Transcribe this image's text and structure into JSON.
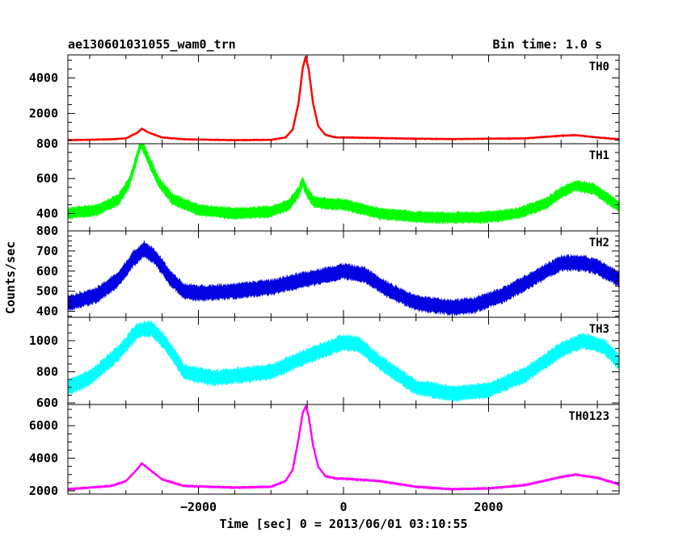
{
  "chart_data": {
    "type": "line",
    "header_left": "ae130601031055_wam0_trn",
    "header_right": "Bin time: 1.0 s",
    "xlabel": "Time [sec] 0 = 2013/06/01 03:10:55",
    "ylabel": "Counts/sec",
    "xlim": [
      -3800,
      3800
    ],
    "xticks": [
      -2000,
      0,
      2000
    ],
    "xtick_labels": [
      "−2000",
      "0",
      "2000"
    ],
    "grid": false,
    "panels": [
      {
        "label": "TH0",
        "color": "#ff0000",
        "ylim": [
          300,
          5300
        ],
        "yticks": [
          2000,
          4000
        ],
        "ytick_labels": [
          "2000",
          "4000"
        ],
        "noise": 40,
        "x": [
          -3800,
          -3200,
          -3000,
          -2850,
          -2780,
          -2700,
          -2500,
          -2200,
          -1500,
          -1000,
          -800,
          -700,
          -620,
          -560,
          -520,
          -480,
          -420,
          -350,
          -250,
          -100,
          0,
          500,
          1000,
          1500,
          2000,
          2500,
          3000,
          3200,
          3500,
          3800
        ],
        "values": [
          500,
          550,
          600,
          900,
          1150,
          950,
          650,
          550,
          500,
          520,
          650,
          1100,
          2600,
          4600,
          5200,
          4500,
          2600,
          1300,
          800,
          650,
          650,
          620,
          580,
          560,
          580,
          600,
          750,
          780,
          650,
          550
        ]
      },
      {
        "label": "TH1",
        "color": "#00ff00",
        "ylim": [
          300,
          800
        ],
        "yticks": [
          400,
          600,
          800
        ],
        "ytick_labels": [
          "400",
          "600",
          "800"
        ],
        "noise": 30,
        "x": [
          -3800,
          -3400,
          -3100,
          -2950,
          -2850,
          -2790,
          -2700,
          -2550,
          -2350,
          -2000,
          -1500,
          -1000,
          -750,
          -620,
          -560,
          -500,
          -420,
          -300,
          0,
          500,
          1000,
          1500,
          2000,
          2400,
          2800,
          3000,
          3200,
          3450,
          3800
        ],
        "values": [
          400,
          420,
          480,
          580,
          720,
          810,
          720,
          580,
          480,
          420,
          400,
          410,
          450,
          520,
          580,
          520,
          470,
          460,
          450,
          400,
          380,
          375,
          380,
          400,
          460,
          520,
          560,
          540,
          440
        ]
      },
      {
        "label": "TH2",
        "color": "#0000e0",
        "ylim": [
          370,
          800
        ],
        "yticks": [
          400,
          500,
          600,
          700,
          800
        ],
        "ytick_labels": [
          "400",
          "500",
          "600",
          "700",
          "800"
        ],
        "noise": 35,
        "x": [
          -3800,
          -3400,
          -3100,
          -2900,
          -2750,
          -2600,
          -2400,
          -2200,
          -2000,
          -1500,
          -1000,
          -500,
          0,
          300,
          600,
          1000,
          1500,
          1800,
          2200,
          2600,
          3000,
          3300,
          3500,
          3800
        ],
        "values": [
          440,
          480,
          560,
          660,
          710,
          670,
          570,
          500,
          490,
          500,
          520,
          560,
          600,
          580,
          510,
          440,
          420,
          430,
          480,
          560,
          640,
          640,
          620,
          560
        ]
      },
      {
        "label": "TH3",
        "color": "#00ffff",
        "ylim": [
          590,
          1150
        ],
        "yticks": [
          600,
          800,
          1000
        ],
        "ytick_labels": [
          "600",
          "800",
          "1000"
        ],
        "noise": 45,
        "x": [
          -3800,
          -3500,
          -3100,
          -2850,
          -2650,
          -2450,
          -2200,
          -1800,
          -1000,
          -500,
          0,
          200,
          500,
          1000,
          1500,
          2000,
          2500,
          3000,
          3300,
          3600,
          3800
        ],
        "values": [
          700,
          760,
          920,
          1060,
          1080,
          980,
          800,
          760,
          800,
          900,
          990,
          980,
          860,
          700,
          660,
          680,
          780,
          940,
          1000,
          960,
          860
        ]
      },
      {
        "label": "TH0123",
        "color": "#ff00ff",
        "ylim": [
          1800,
          7300
        ],
        "yticks": [
          2000,
          4000,
          6000
        ],
        "ytick_labels": [
          "2000",
          "4000",
          "6000"
        ],
        "noise": 70,
        "x": [
          -3800,
          -3200,
          -3000,
          -2850,
          -2780,
          -2700,
          -2500,
          -2200,
          -1500,
          -1000,
          -800,
          -700,
          -620,
          -560,
          -520,
          -480,
          -420,
          -350,
          -250,
          -100,
          0,
          500,
          1000,
          1500,
          2000,
          2500,
          3000,
          3200,
          3500,
          3800
        ],
        "values": [
          2100,
          2300,
          2600,
          3300,
          3700,
          3400,
          2700,
          2300,
          2200,
          2250,
          2600,
          3300,
          5200,
          6800,
          7200,
          6600,
          4800,
          3500,
          2900,
          2750,
          2750,
          2600,
          2250,
          2100,
          2150,
          2350,
          2850,
          3000,
          2800,
          2400
        ]
      }
    ]
  }
}
